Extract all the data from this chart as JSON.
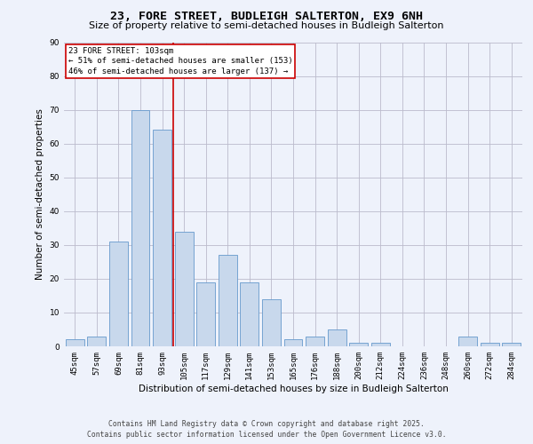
{
  "title": "23, FORE STREET, BUDLEIGH SALTERTON, EX9 6NH",
  "subtitle": "Size of property relative to semi-detached houses in Budleigh Salterton",
  "xlabel": "Distribution of semi-detached houses by size in Budleigh Salterton",
  "ylabel": "Number of semi-detached properties",
  "categories": [
    "45sqm",
    "57sqm",
    "69sqm",
    "81sqm",
    "93sqm",
    "105sqm",
    "117sqm",
    "129sqm",
    "141sqm",
    "153sqm",
    "165sqm",
    "176sqm",
    "188sqm",
    "200sqm",
    "212sqm",
    "224sqm",
    "236sqm",
    "248sqm",
    "260sqm",
    "272sqm",
    "284sqm"
  ],
  "values": [
    2,
    3,
    31,
    70,
    64,
    34,
    19,
    27,
    19,
    14,
    2,
    3,
    5,
    1,
    1,
    0,
    0,
    0,
    3,
    1,
    1
  ],
  "bar_color": "#c8d8ec",
  "bar_edge_color": "#6699cc",
  "vline_index": 4.5,
  "vline_color": "#cc0000",
  "ylim": [
    0,
    90
  ],
  "yticks": [
    0,
    10,
    20,
    30,
    40,
    50,
    60,
    70,
    80,
    90
  ],
  "annotation_title": "23 FORE STREET: 103sqm",
  "annotation_line1": "← 51% of semi-detached houses are smaller (153)",
  "annotation_line2": "46% of semi-detached houses are larger (137) →",
  "annotation_box_facecolor": "white",
  "annotation_box_edgecolor": "#cc0000",
  "footer1": "Contains HM Land Registry data © Crown copyright and database right 2025.",
  "footer2": "Contains public sector information licensed under the Open Government Licence v3.0.",
  "background_color": "#eef2fb",
  "grid_color": "#bbbbcc",
  "title_fontsize": 9.5,
  "subtitle_fontsize": 8,
  "axis_label_fontsize": 7.5,
  "tick_fontsize": 6.5,
  "annotation_fontsize": 6.5,
  "footer_fontsize": 5.8
}
